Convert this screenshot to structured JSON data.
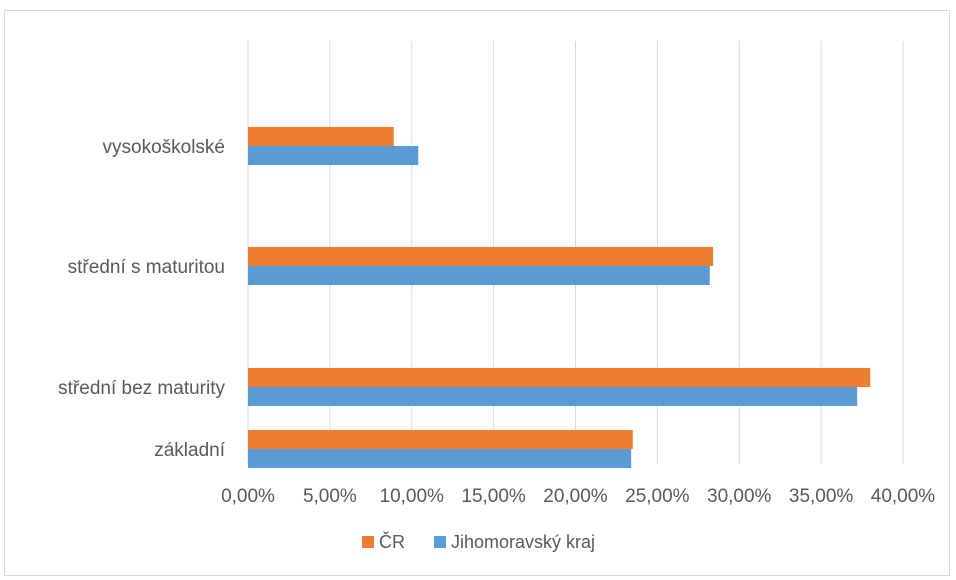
{
  "chart_data": {
    "type": "bar",
    "orientation": "horizontal",
    "categories": [
      "vysokoškolské",
      "střední s maturitou",
      "střední bez maturity",
      "základní"
    ],
    "series": [
      {
        "name": "ČR",
        "color": "#ed7d31",
        "values": [
          8.9,
          28.4,
          38.0,
          23.5
        ]
      },
      {
        "name": "Jihomoravský kraj",
        "color": "#5b9bd5",
        "values": [
          10.4,
          28.2,
          37.2,
          23.4
        ]
      }
    ],
    "xlim": [
      0,
      40
    ],
    "xticks": [
      "0,00%",
      "5,00%",
      "10,00%",
      "15,00%",
      "20,00%",
      "25,00%",
      "30,00%",
      "35,00%",
      "40,00%"
    ],
    "grid": true,
    "legend": "bottom",
    "title": "",
    "xlabel": "",
    "ylabel": ""
  }
}
